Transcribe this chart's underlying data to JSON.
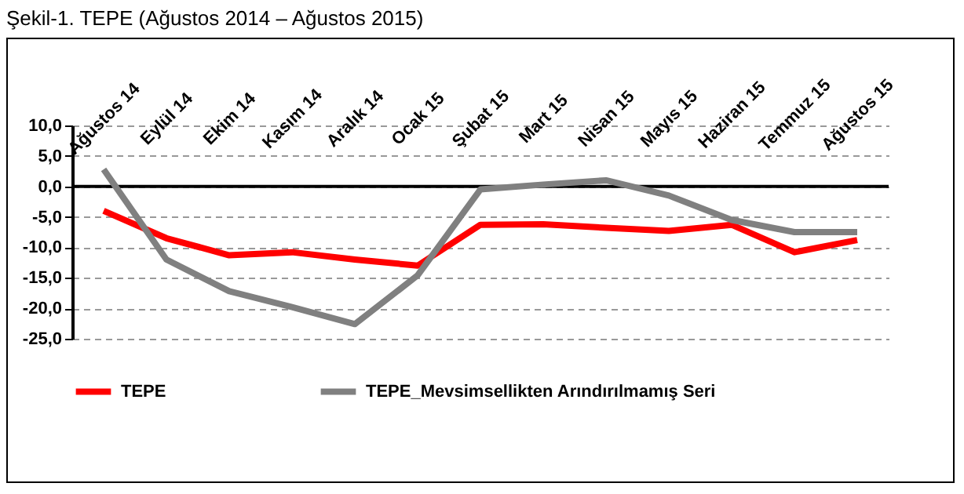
{
  "chart_data": {
    "type": "line",
    "title": "Şekil-1. TEPE (Ağustos 2014 – Ağustos 2015)",
    "categories": [
      "Ağustos 14",
      "Eylül 14",
      "Ekim 14",
      "Kasım 14",
      "Aralık 14",
      "Ocak 15",
      "Şubat 15",
      "Mart 15",
      "Nisan 15",
      "Mayıs 15",
      "Haziran 15",
      "Temmuz 15",
      "Ağustos 15"
    ],
    "series": [
      {
        "name": "TEPE",
        "color": "#ff0000",
        "values": [
          -4.0,
          -8.5,
          -11.3,
          -10.8,
          -12.0,
          -13.0,
          -6.3,
          -6.2,
          -6.8,
          -7.3,
          -6.3,
          -10.8,
          -8.8
        ]
      },
      {
        "name": "TEPE_Mevsimsellikten  Arındırılmamış Seri",
        "color": "#808080",
        "values": [
          2.8,
          -12.0,
          -17.2,
          -19.8,
          -22.6,
          -14.6,
          -0.5,
          0.3,
          1.0,
          -1.5,
          -5.5,
          -7.5,
          -7.5
        ]
      }
    ],
    "ylim": [
      -25,
      10
    ],
    "yticks": [
      {
        "value": -25,
        "label": "-25,0"
      },
      {
        "value": -20,
        "label": "-20,0"
      },
      {
        "value": -15,
        "label": "-15,0"
      },
      {
        "value": -10,
        "label": "-10,0"
      },
      {
        "value": -5,
        "label": "-5,0"
      },
      {
        "value": 0,
        "label": "0,0"
      },
      {
        "value": 5,
        "label": "5,0"
      },
      {
        "value": 10,
        "label": "10,0"
      }
    ],
    "grid": "y",
    "legend": "bottom",
    "line_style": "solid",
    "marker": "none",
    "ref_lines": [
      {
        "axis": "y",
        "value": 0,
        "color": "#000000"
      }
    ]
  }
}
